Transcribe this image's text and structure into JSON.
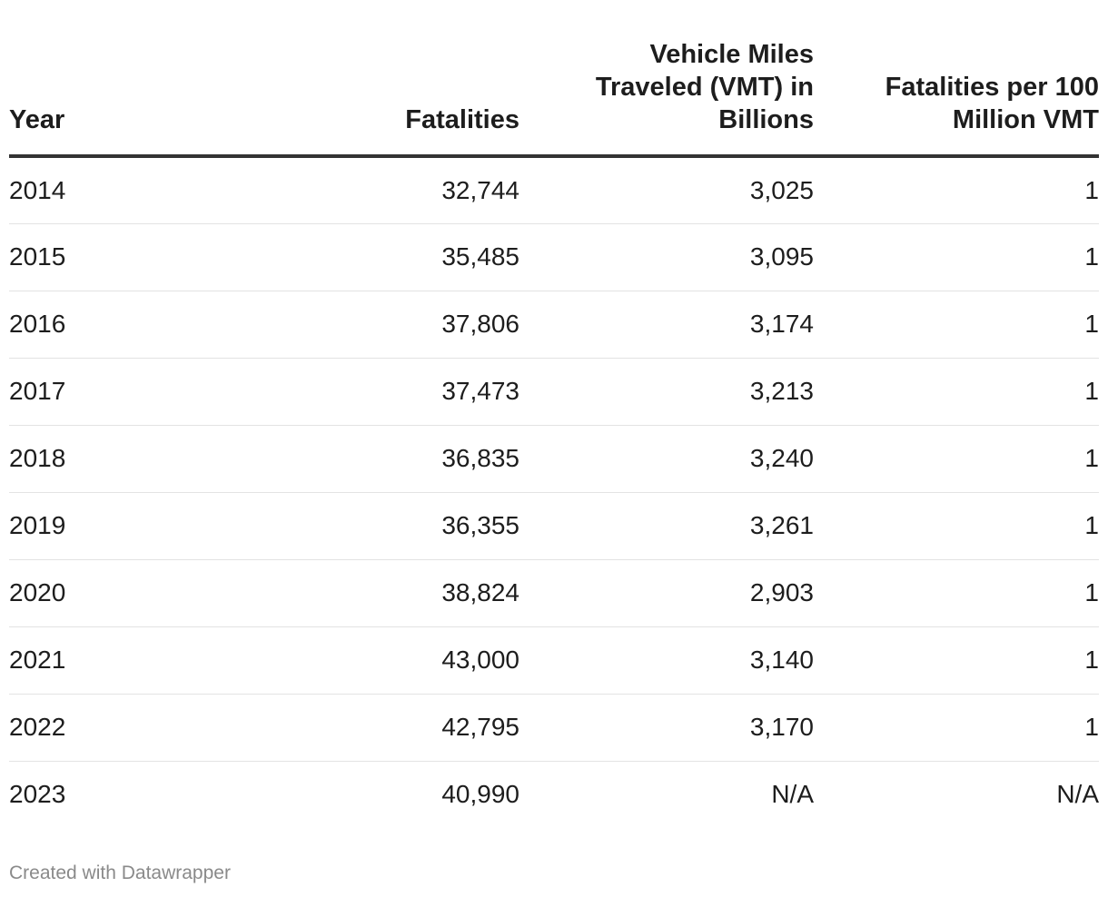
{
  "chart_data": {
    "type": "table",
    "columns": [
      "Year",
      "Fatalities",
      "Vehicle Miles Traveled (VMT) in Billions",
      "Fatalities per 100 Million VMT"
    ],
    "rows": [
      [
        "2014",
        "32,744",
        "3,025",
        "1"
      ],
      [
        "2015",
        "35,485",
        "3,095",
        "1"
      ],
      [
        "2016",
        "37,806",
        "3,174",
        "1"
      ],
      [
        "2017",
        "37,473",
        "3,213",
        "1"
      ],
      [
        "2018",
        "36,835",
        "3,240",
        "1"
      ],
      [
        "2019",
        "36,355",
        "3,261",
        "1"
      ],
      [
        "2020",
        "38,824",
        "2,903",
        "1"
      ],
      [
        "2021",
        "43,000",
        "3,140",
        "1"
      ],
      [
        "2022",
        "42,795",
        "3,170",
        "1"
      ],
      [
        "2023",
        "40,990",
        "N/A",
        "N/A"
      ]
    ]
  },
  "footer": {
    "credit": "Created with Datawrapper"
  },
  "colors": {
    "text": "#1d1d1d",
    "header_rule": "#333333",
    "row_rule": "#e3e3e3",
    "footer_text": "#8a8a8a"
  }
}
